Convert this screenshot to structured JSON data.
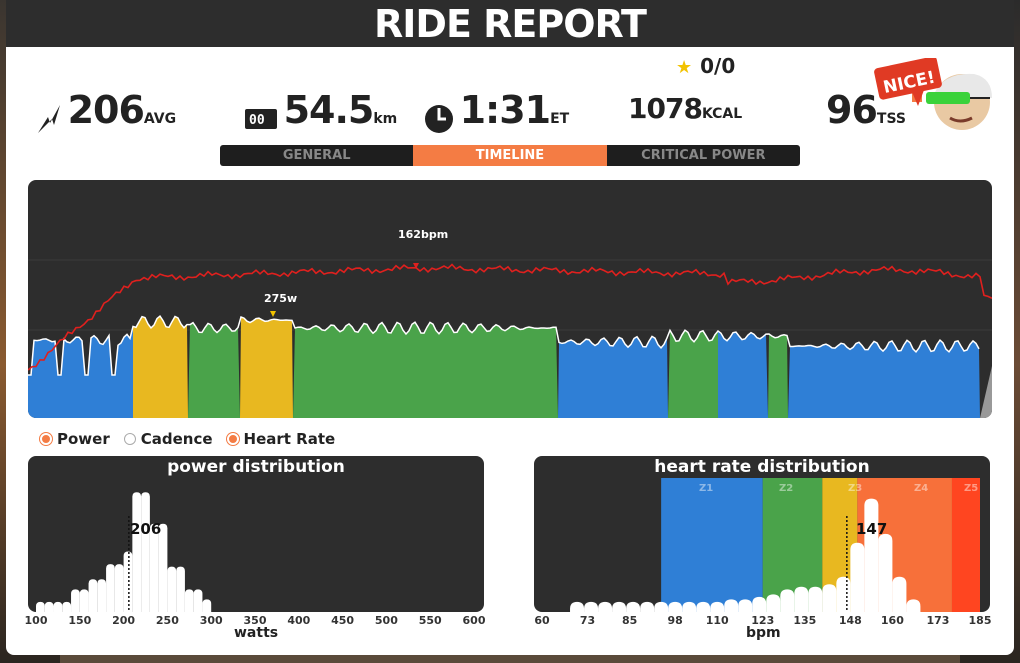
{
  "title": "RIDE REPORT",
  "stars": "0/0",
  "stats": {
    "power": {
      "value": "206",
      "unit": "AVG"
    },
    "distance": {
      "value": "54.5",
      "unit": "km"
    },
    "time": {
      "value": "1:31",
      "unit": "ET"
    },
    "calories": {
      "value": "1078",
      "unit": "KCAL"
    },
    "tss": {
      "value": "96",
      "unit": "TSS"
    }
  },
  "badge": "NICE!",
  "tabs": [
    "GENERAL",
    "TIMELINE",
    "CRITICAL POWER"
  ],
  "active_tab": "TIMELINE",
  "timeline": {
    "hr_peak_label": "162bpm",
    "power_peak_label": "275w"
  },
  "legend": [
    "Power",
    "Cadence",
    "Heart Rate"
  ],
  "legend_states": [
    true,
    false,
    true
  ],
  "colors": {
    "accent": "#f47c44",
    "heart_rate": "#e0201e",
    "zone_blue": "#2f7fd6",
    "zone_green": "#4aa34a",
    "zone_yellow": "#e8b820",
    "zone_orange": "#f7703a",
    "zone_red": "#ff4520",
    "panel_dark": "#2d2d2d"
  },
  "power_distribution": {
    "title": "power distribution",
    "xlabel": "watts",
    "ticks": [
      "100",
      "150",
      "200",
      "250",
      "300",
      "350",
      "400",
      "450",
      "500",
      "550",
      "600"
    ],
    "avg_label": "206",
    "avg_value": 206,
    "xlim": [
      100,
      600
    ],
    "bins_x": [
      100,
      110,
      120,
      130,
      140,
      150,
      160,
      170,
      180,
      190,
      200,
      210,
      220,
      230,
      240,
      250,
      260,
      270,
      280,
      290
    ],
    "bins_y": [
      0.08,
      0.08,
      0.08,
      0.08,
      0.18,
      0.18,
      0.26,
      0.26,
      0.38,
      0.38,
      0.48,
      0.95,
      0.95,
      0.7,
      0.7,
      0.36,
      0.36,
      0.18,
      0.18,
      0.1
    ]
  },
  "hr_distribution": {
    "title": "heart rate distribution",
    "xlabel": "bpm",
    "ticks": [
      "60",
      "73",
      "85",
      "98",
      "110",
      "123",
      "135",
      "148",
      "160",
      "173",
      "185"
    ],
    "avg_label": "147",
    "avg_value": 147,
    "xlim": [
      60,
      185
    ],
    "zones": [
      {
        "name": "Z1",
        "from": 94,
        "to": 123
      },
      {
        "name": "Z2",
        "from": 123,
        "to": 140
      },
      {
        "name": "Z3",
        "from": 140,
        "to": 150
      },
      {
        "name": "Z4",
        "from": 150,
        "to": 177
      },
      {
        "name": "Z5",
        "from": 177,
        "to": 185
      }
    ],
    "bins_x": [
      68,
      72,
      76,
      80,
      84,
      88,
      92,
      96,
      100,
      104,
      108,
      112,
      116,
      120,
      124,
      128,
      132,
      136,
      140,
      144,
      148,
      152,
      156,
      160,
      164
    ],
    "bins_y": [
      0.08,
      0.08,
      0.08,
      0.08,
      0.08,
      0.08,
      0.08,
      0.08,
      0.08,
      0.08,
      0.08,
      0.1,
      0.1,
      0.12,
      0.14,
      0.18,
      0.2,
      0.2,
      0.22,
      0.28,
      0.55,
      0.9,
      0.62,
      0.28,
      0.1
    ]
  }
}
